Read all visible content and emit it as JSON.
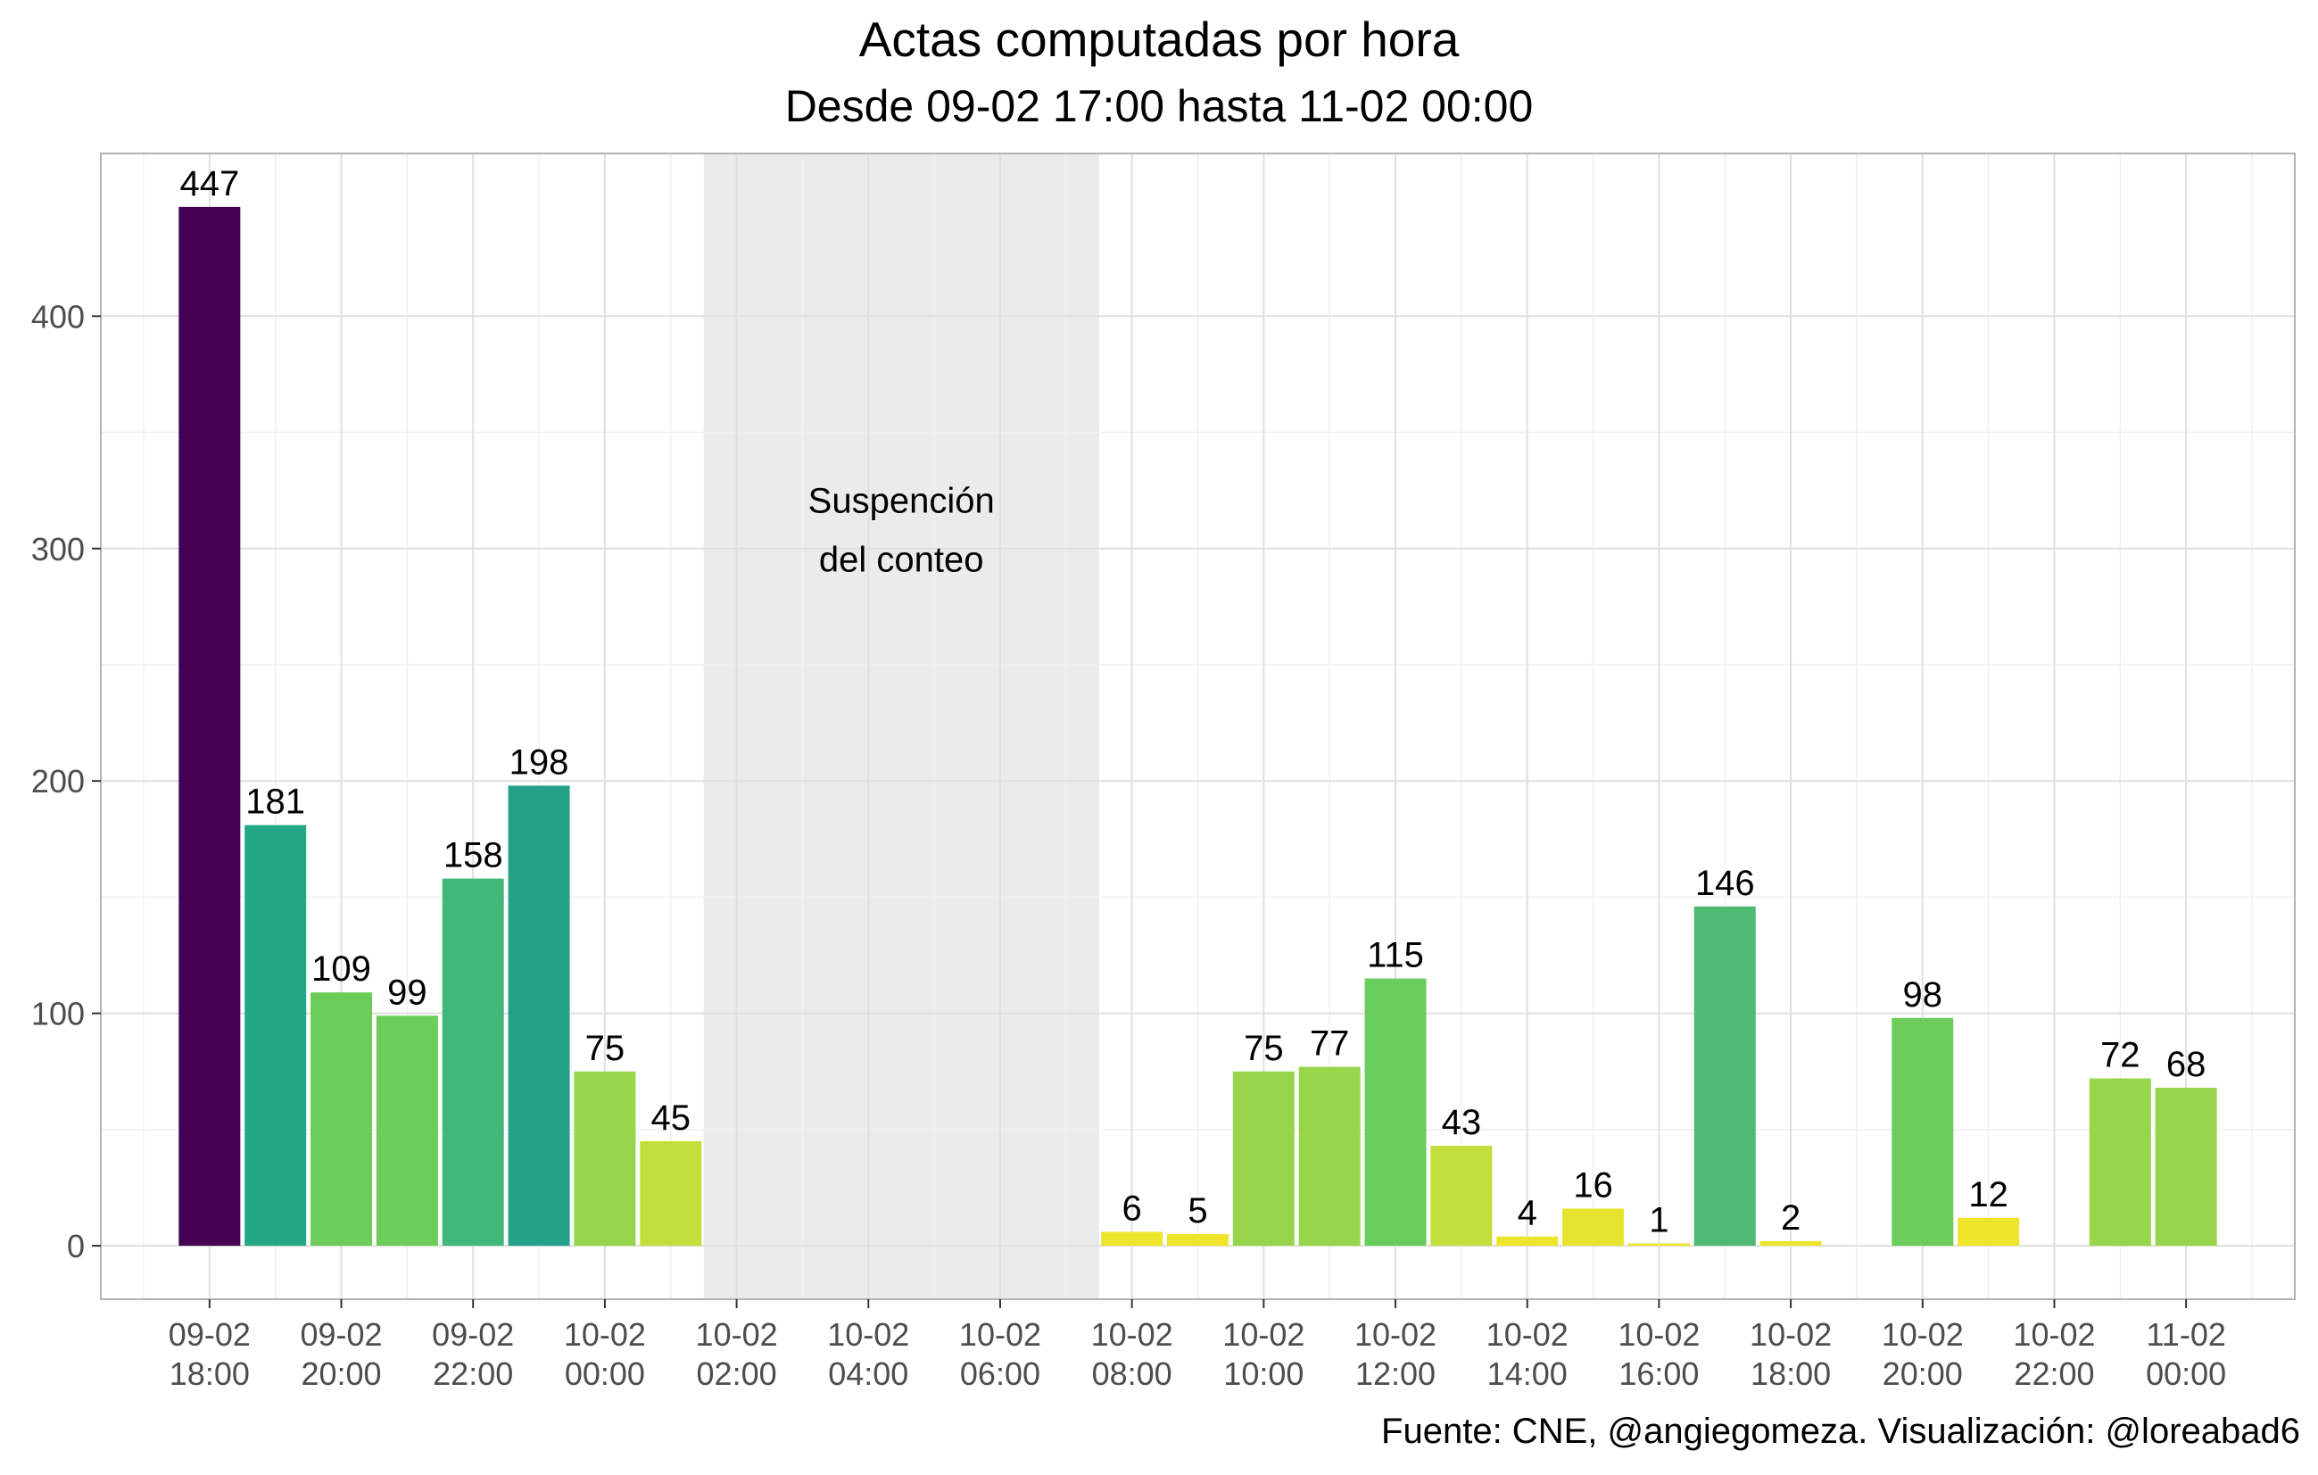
{
  "chart_data": {
    "type": "bar",
    "title": "Actas computadas por hora",
    "subtitle": "Desde 09-02 17:00 hasta 11-02 00:00",
    "caption": "Fuente: CNE, @angiegomeza. Visualización: @loreabad6",
    "xlabel": "",
    "ylabel": "",
    "ylim": [
      -23,
      470
    ],
    "yticks": [
      0,
      100,
      200,
      300,
      400
    ],
    "grid": true,
    "x_start": "09-02 17:00",
    "x_end": "11-02 00:00",
    "x_ticks": [
      {
        "hour": 18,
        "line1": "09-02",
        "line2": "18:00"
      },
      {
        "hour": 20,
        "line1": "09-02",
        "line2": "20:00"
      },
      {
        "hour": 22,
        "line1": "09-02",
        "line2": "22:00"
      },
      {
        "hour": 24,
        "line1": "10-02",
        "line2": "00:00"
      },
      {
        "hour": 26,
        "line1": "10-02",
        "line2": "02:00"
      },
      {
        "hour": 28,
        "line1": "10-02",
        "line2": "04:00"
      },
      {
        "hour": 30,
        "line1": "10-02",
        "line2": "06:00"
      },
      {
        "hour": 32,
        "line1": "10-02",
        "line2": "08:00"
      },
      {
        "hour": 34,
        "line1": "10-02",
        "line2": "10:00"
      },
      {
        "hour": 36,
        "line1": "10-02",
        "line2": "12:00"
      },
      {
        "hour": 38,
        "line1": "10-02",
        "line2": "14:00"
      },
      {
        "hour": 40,
        "line1": "10-02",
        "line2": "16:00"
      },
      {
        "hour": 42,
        "line1": "10-02",
        "line2": "18:00"
      },
      {
        "hour": 44,
        "line1": "10-02",
        "line2": "20:00"
      },
      {
        "hour": 46,
        "line1": "10-02",
        "line2": "22:00"
      },
      {
        "hour": 48,
        "line1": "11-02",
        "line2": "00:00"
      }
    ],
    "bars": [
      {
        "hour": 18,
        "value": 447,
        "color": "#440154"
      },
      {
        "hour": 19,
        "value": 181,
        "color": "#22a884"
      },
      {
        "hour": 20,
        "value": 109,
        "color": "#6ccd5a"
      },
      {
        "hour": 21,
        "value": 99,
        "color": "#6ccd5a"
      },
      {
        "hour": 22,
        "value": 158,
        "color": "#42b77a"
      },
      {
        "hour": 23,
        "value": 198,
        "color": "#25a188"
      },
      {
        "hour": 24,
        "value": 75,
        "color": "#97d54b"
      },
      {
        "hour": 25,
        "value": 45,
        "color": "#c2df3b"
      },
      {
        "hour": 32,
        "value": 6,
        "color": "#ece52b"
      },
      {
        "hour": 33,
        "value": 5,
        "color": "#ece52b"
      },
      {
        "hour": 34,
        "value": 75,
        "color": "#97d54b"
      },
      {
        "hour": 35,
        "value": 77,
        "color": "#97d54b"
      },
      {
        "hour": 36,
        "value": 115,
        "color": "#69cc5c"
      },
      {
        "hour": 37,
        "value": 43,
        "color": "#c2df3b"
      },
      {
        "hour": 38,
        "value": 4,
        "color": "#ece52b"
      },
      {
        "hour": 39,
        "value": 16,
        "color": "#e6e42e"
      },
      {
        "hour": 40,
        "value": 1,
        "color": "#ece52b"
      },
      {
        "hour": 41,
        "value": 146,
        "color": "#4fb975"
      },
      {
        "hour": 42,
        "value": 2,
        "color": "#ece52b"
      },
      {
        "hour": 44,
        "value": 98,
        "color": "#6ccd5a"
      },
      {
        "hour": 45,
        "value": 12,
        "color": "#ece52b"
      },
      {
        "hour": 47,
        "value": 72,
        "color": "#97d54b"
      },
      {
        "hour": 48,
        "value": 68,
        "color": "#97d54b"
      }
    ],
    "suspension": {
      "from_hour": 25.5,
      "to_hour": 31.5,
      "label_line1": "Suspención",
      "label_line2": "del conteo",
      "label_value": 310,
      "color": "#ebebeb"
    },
    "colors": {
      "grid": "#e0e0e0",
      "grid_minor": "#f0f0f0",
      "panel_border": "#b3b3b3"
    }
  }
}
